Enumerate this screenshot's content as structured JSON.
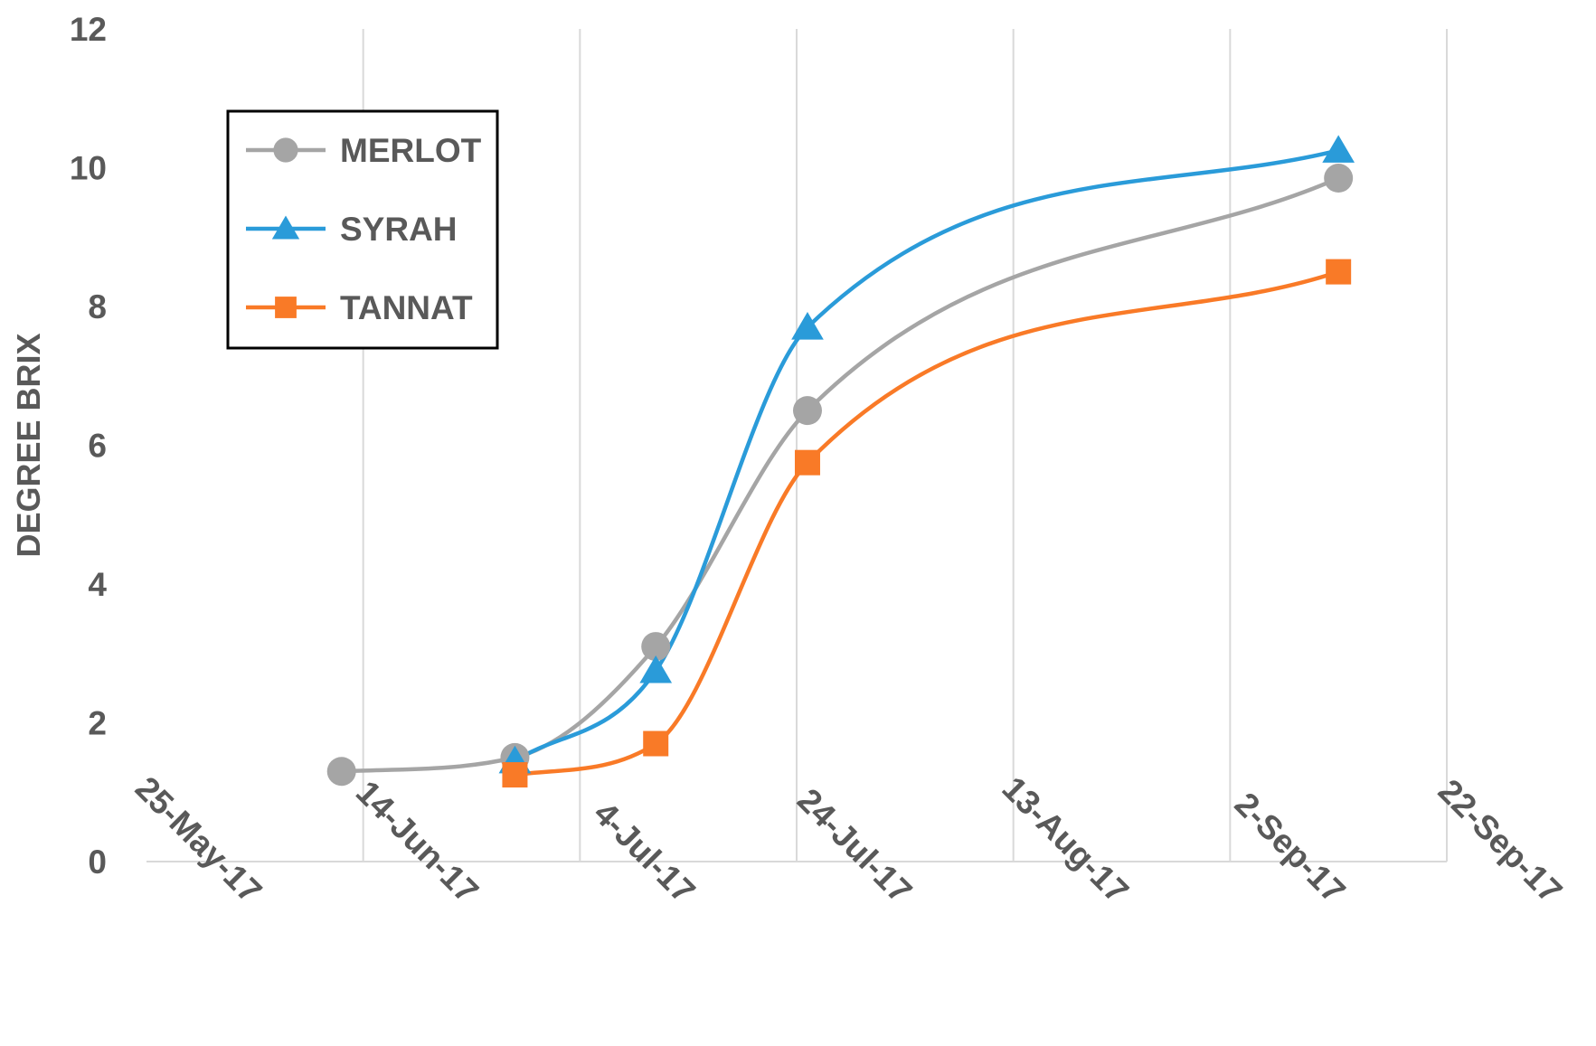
{
  "chart_data": {
    "type": "line",
    "ylabel": "DEGREE BRIX",
    "xlabel": "",
    "ylim": [
      0,
      12
    ],
    "yticks": [
      "0",
      "2",
      "4",
      "6",
      "8",
      "10",
      "12"
    ],
    "xlim": [
      "2017-05-25",
      "2017-09-22"
    ],
    "xticks": [
      {
        "date": "2017-05-25",
        "label": "25-May-17"
      },
      {
        "date": "2017-06-14",
        "label": "14-Jun-17"
      },
      {
        "date": "2017-07-04",
        "label": "4-Jul-17"
      },
      {
        "date": "2017-07-24",
        "label": "24-Jul-17"
      },
      {
        "date": "2017-08-13",
        "label": "13-Aug-17"
      },
      {
        "date": "2017-09-02",
        "label": "2-Sep-17"
      },
      {
        "date": "2017-09-22",
        "label": "22-Sep-17"
      }
    ],
    "grid": {
      "vertical": true,
      "horizontal": false
    },
    "legend_position": "top-left",
    "series": [
      {
        "name": "MERLOT",
        "color": "#a5a5a5",
        "marker": "circle",
        "points": [
          {
            "x": "2017-06-12",
            "y": 1.3
          },
          {
            "x": "2017-06-28",
            "y": 1.5
          },
          {
            "x": "2017-07-11",
            "y": 3.1
          },
          {
            "x": "2017-07-25",
            "y": 6.5
          },
          {
            "x": "2017-09-12",
            "y": 9.85
          }
        ]
      },
      {
        "name": "SYRAH",
        "color": "#2a9bd9",
        "marker": "triangle",
        "points": [
          {
            "x": "2017-06-28",
            "y": 1.45
          },
          {
            "x": "2017-07-11",
            "y": 2.75
          },
          {
            "x": "2017-07-25",
            "y": 7.7
          },
          {
            "x": "2017-09-12",
            "y": 10.25
          }
        ]
      },
      {
        "name": "TANNAT",
        "color": "#f97a27",
        "marker": "square",
        "points": [
          {
            "x": "2017-06-28",
            "y": 1.25
          },
          {
            "x": "2017-07-11",
            "y": 1.7
          },
          {
            "x": "2017-07-25",
            "y": 5.75
          },
          {
            "x": "2017-09-12",
            "y": 8.5
          }
        ]
      }
    ]
  }
}
